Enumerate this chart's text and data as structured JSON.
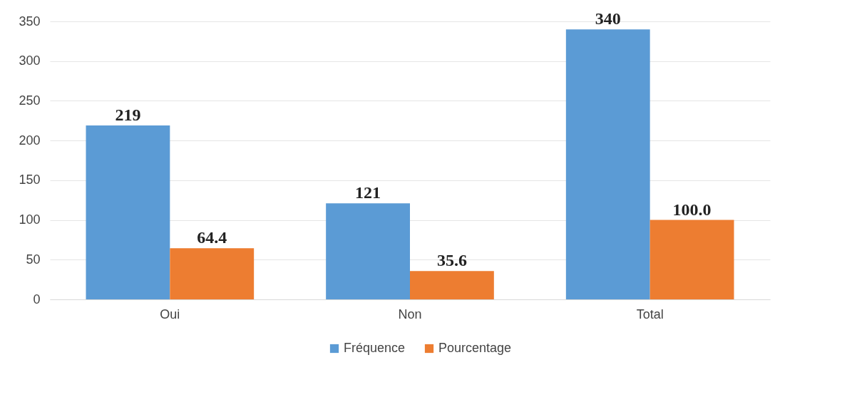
{
  "chart_data": {
    "type": "bar",
    "categories": [
      "Oui",
      "Non",
      "Total"
    ],
    "series": [
      {
        "name": "Fréquence",
        "color": "#5b9bd5",
        "values": [
          219,
          121,
          340
        ],
        "value_labels": [
          "219",
          "121",
          "340"
        ]
      },
      {
        "name": "Pourcentage",
        "color": "#ed7d31",
        "values": [
          64.4,
          35.6,
          100.0
        ],
        "value_labels": [
          "64.4",
          "35.6",
          "100.0"
        ]
      }
    ],
    "ylim": [
      0,
      350
    ],
    "yticks": [
      0,
      50,
      100,
      150,
      200,
      250,
      300,
      350
    ],
    "grid": "y",
    "legend": "bottom"
  }
}
